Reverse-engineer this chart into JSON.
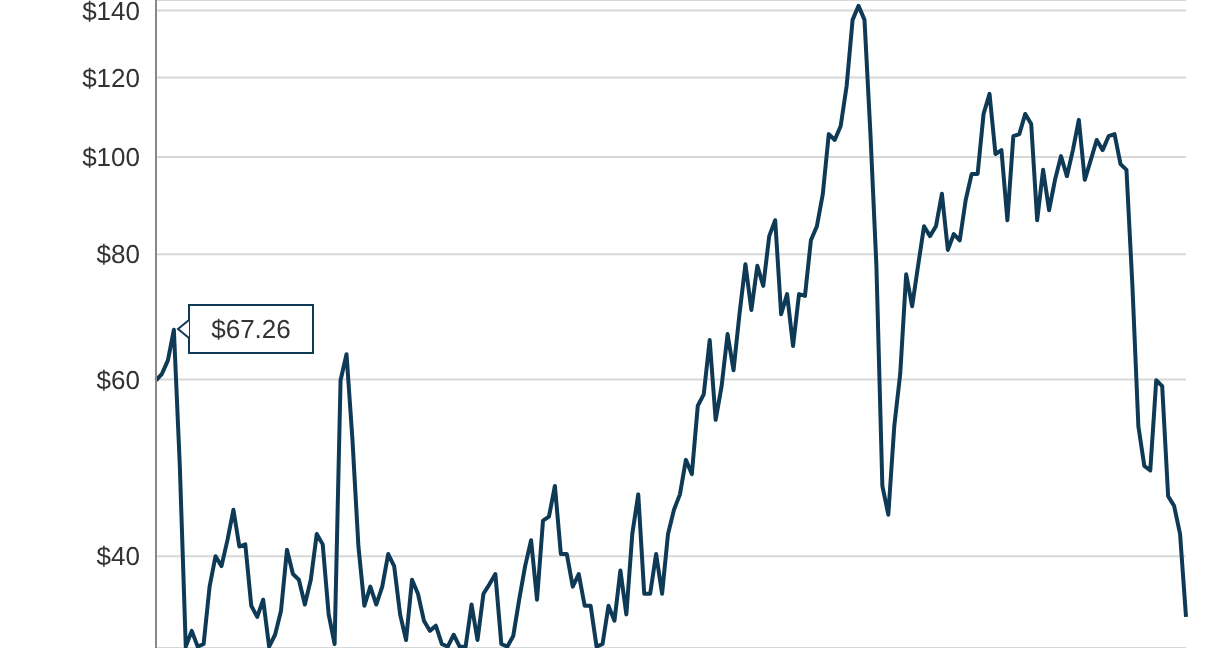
{
  "chart_data": {
    "type": "line",
    "log": true,
    "grid": "y",
    "tick_labels": "y",
    "color": "#0e3a56",
    "categories": [
      null,
      null,
      null,
      null,
      null,
      null,
      null,
      null,
      null,
      null,
      null,
      null,
      null,
      null,
      null,
      null,
      null,
      null,
      null,
      null,
      null,
      null,
      null,
      null,
      null,
      null,
      null,
      null,
      null,
      null,
      null,
      null,
      null,
      null,
      null,
      null,
      null,
      null,
      null,
      null,
      null,
      null,
      null,
      null,
      null,
      null,
      null,
      null,
      null,
      null,
      null,
      null,
      null,
      null,
      null,
      null,
      null,
      null,
      null,
      null,
      null,
      null,
      null,
      null,
      null,
      null,
      null,
      null,
      null,
      null,
      null,
      null,
      null,
      null,
      null,
      null,
      null,
      null,
      null,
      null,
      null,
      null,
      null,
      null,
      null,
      null,
      null,
      null,
      null,
      null,
      null,
      null,
      null,
      null,
      null,
      null,
      null,
      null,
      null,
      null,
      null,
      null,
      null,
      null,
      null,
      null,
      null,
      null,
      null,
      null,
      null,
      null,
      null,
      null,
      null,
      null,
      null,
      null,
      null,
      null,
      null,
      null,
      null,
      null,
      null,
      null,
      null,
      null,
      null,
      null,
      null,
      null,
      null,
      null,
      null,
      null,
      null,
      null,
      null,
      null,
      null,
      null,
      null,
      null,
      null,
      null,
      null,
      null,
      null,
      null,
      null,
      null,
      null,
      null,
      null,
      null,
      null,
      null,
      null,
      null,
      null,
      null,
      null,
      null,
      null,
      null,
      null,
      null,
      null,
      null,
      null,
      null,
      null,
      null
    ],
    "values": [
      59.9,
      60.8,
      62.7,
      67.26,
      49.2,
      32.5,
      33.7,
      32.5,
      32.7,
      37.3,
      40,
      39.1,
      41.5,
      44.5,
      40.9,
      41.1,
      35.7,
      34.8,
      36.2,
      32.5,
      33.4,
      35.3,
      40.6,
      38.4,
      37.9,
      35.8,
      37.9,
      42.1,
      41.1,
      35.0,
      32.7,
      59.9,
      63.6,
      52.2,
      40.9,
      35.7,
      37.3,
      35.8,
      37.3,
      40.2,
      39.1,
      35.0,
      33.0,
      37.9,
      36.7,
      34.5,
      33.7,
      34.1,
      32.7,
      32.5,
      33.4,
      32.5,
      32.5,
      35.8,
      33.0,
      36.7,
      37.5,
      38.4,
      32.7,
      32.5,
      33.3,
      36.2,
      39.1,
      41.5,
      36.2,
      43.4,
      43.8,
      47.0,
      40.2,
      40.2,
      37.3,
      38.4,
      35.7,
      35.7,
      32.5,
      32.7,
      35.7,
      34.5,
      38.7,
      35.0,
      42.1,
      46.1,
      36.7,
      36.7,
      40.2,
      36.7,
      42.1,
      44.5,
      46.1,
      49.9,
      48.3,
      56.5,
      58.0,
      65.7,
      54.7,
      59.1,
      66.6,
      61.3,
      69.7,
      78.2,
      70.4,
      77.9,
      74.4,
      83.4,
      86.5,
      69.7,
      73.0,
      64.8,
      73.0,
      72.7,
      82.6,
      85.3,
      91.9,
      105.4,
      104.0,
      107.4,
      117.7,
      137.0,
      141.5,
      137.0,
      105.4,
      77.9,
      47.0,
      44.0,
      53.9,
      60.8,
      76.4,
      71.0,
      77.9,
      85.3,
      83.4,
      85.3,
      91.9,
      80.8,
      83.8,
      82.6,
      90.6,
      96.2,
      96.2,
      110.4,
      115.6,
      100.7,
      101.6,
      86.5,
      104.9,
      105.4,
      110.4,
      107.9,
      86.5,
      97.1,
      88.5,
      94.9,
      100.2,
      95.7,
      101.6,
      108.9,
      94.9,
      99.3,
      104.0,
      101.6,
      104.9,
      105.4,
      98.4,
      97.1,
      74.4,
      53.9,
      49.2,
      48.7,
      59.9,
      59.1,
      45.9,
      44.9,
      42.1,
      34.8
    ],
    "ylim": [
      32.4,
      143.4
    ],
    "yticks": [
      {
        "value": 40,
        "label": "$40"
      },
      {
        "value": 60,
        "label": "$60"
      },
      {
        "value": 80,
        "label": "$80"
      },
      {
        "value": 100,
        "label": "$100"
      },
      {
        "value": 120,
        "label": "$120"
      },
      {
        "value": 140,
        "label": "$140"
      }
    ],
    "annotations": [
      "$67.26"
    ]
  }
}
